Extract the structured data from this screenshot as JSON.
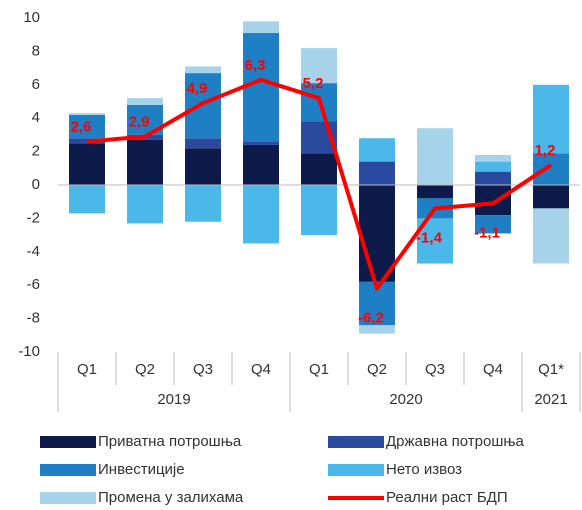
{
  "chart_data": {
    "type": "stacked_bar_line",
    "groups": [
      {
        "label": "2019",
        "categories": [
          "Q1",
          "Q2",
          "Q3",
          "Q4"
        ]
      },
      {
        "label": "2020",
        "categories": [
          "Q1",
          "Q2",
          "Q3",
          "Q4"
        ]
      },
      {
        "label": "2021",
        "categories": [
          "Q1*"
        ]
      }
    ],
    "series": [
      {
        "name": "Приватна потрошња",
        "color": "#0d1a4a",
        "values": [
          2.5,
          2.7,
          2.2,
          2.4,
          1.9,
          -5.8,
          -0.8,
          -1.8,
          -1.4
        ]
      },
      {
        "name": "Државна потрошња",
        "color": "#2a4aa0",
        "values": [
          0.3,
          0.3,
          0.6,
          0.2,
          1.9,
          1.4,
          0,
          0.8,
          0
        ]
      },
      {
        "name": "Инвестиције",
        "color": "#1f7fc4",
        "values": [
          1.4,
          1.8,
          3.9,
          6.5,
          2.3,
          -2.6,
          -1.2,
          -1.1,
          1.9
        ]
      },
      {
        "name": "Нето извоз",
        "color": "#4ab8e8",
        "values": [
          -1.7,
          -2.3,
          -2.2,
          -3.5,
          -3.0,
          1.4,
          -2.7,
          0.6,
          4.1
        ]
      },
      {
        "name": "Промена у залихама",
        "color": "#a6d3ea",
        "values": [
          0.1,
          0.4,
          0.4,
          0.7,
          2.1,
          -0.5,
          3.4,
          0.4,
          -3.3
        ]
      }
    ],
    "line": {
      "name": "Реални раст БДП",
      "color": "#ff0000",
      "values": [
        2.6,
        2.9,
        4.9,
        6.3,
        5.2,
        -6.2,
        -1.4,
        -1.1,
        1.2
      ],
      "value_labels": [
        "2,6",
        "2,9",
        "4,9",
        "6,3",
        "5,2",
        "-6,2",
        "-1,4",
        "-1,1",
        "1,2"
      ]
    },
    "ylim": [
      -10,
      10
    ],
    "yticks": [
      -10,
      -8,
      -6,
      -4,
      -2,
      0,
      2,
      4,
      6,
      8,
      10
    ]
  }
}
